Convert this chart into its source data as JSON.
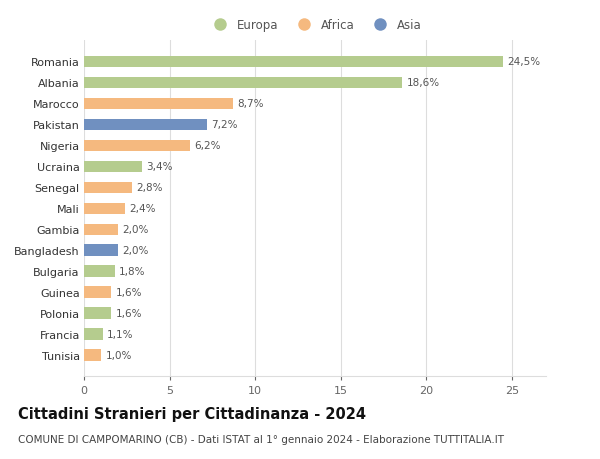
{
  "categories": [
    "Tunisia",
    "Francia",
    "Polonia",
    "Guinea",
    "Bulgaria",
    "Bangladesh",
    "Gambia",
    "Mali",
    "Senegal",
    "Ucraina",
    "Nigeria",
    "Pakistan",
    "Marocco",
    "Albania",
    "Romania"
  ],
  "values": [
    1.0,
    1.1,
    1.6,
    1.6,
    1.8,
    2.0,
    2.0,
    2.4,
    2.8,
    3.4,
    6.2,
    7.2,
    8.7,
    18.6,
    24.5
  ],
  "labels": [
    "1,0%",
    "1,1%",
    "1,6%",
    "1,6%",
    "1,8%",
    "2,0%",
    "2,0%",
    "2,4%",
    "2,8%",
    "3,4%",
    "6,2%",
    "7,2%",
    "8,7%",
    "18,6%",
    "24,5%"
  ],
  "continents": [
    "Africa",
    "Europa",
    "Europa",
    "Africa",
    "Europa",
    "Asia",
    "Africa",
    "Africa",
    "Africa",
    "Europa",
    "Africa",
    "Asia",
    "Africa",
    "Europa",
    "Europa"
  ],
  "continent_colors": {
    "Europa": "#b5cc8e",
    "Africa": "#f5b97f",
    "Asia": "#7090c0"
  },
  "legend_order": [
    "Europa",
    "Africa",
    "Asia"
  ],
  "title": "Cittadini Stranieri per Cittadinanza - 2024",
  "subtitle": "COMUNE DI CAMPOMARINO (CB) - Dati ISTAT al 1° gennaio 2024 - Elaborazione TUTTITALIA.IT",
  "xlim": [
    0,
    27
  ],
  "xticks": [
    0,
    5,
    10,
    15,
    20,
    25
  ],
  "background_color": "#ffffff",
  "grid_color": "#dddddd",
  "bar_height": 0.55,
  "title_fontsize": 10.5,
  "subtitle_fontsize": 7.5,
  "label_fontsize": 7.5,
  "tick_fontsize": 8,
  "legend_fontsize": 8.5
}
